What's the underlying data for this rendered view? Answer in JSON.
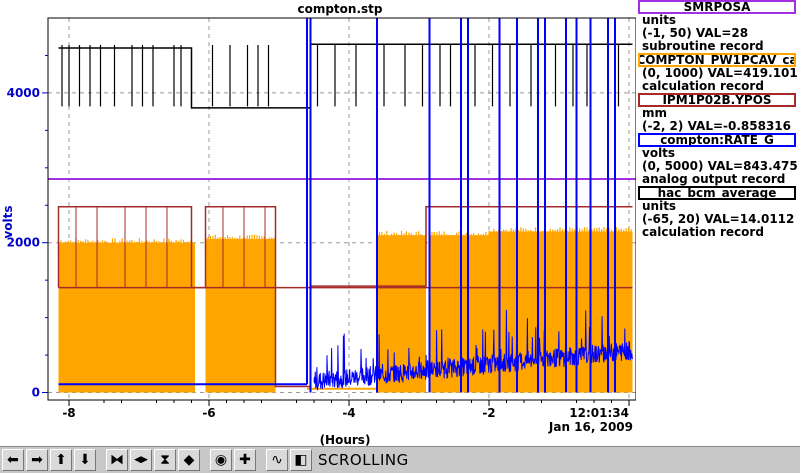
{
  "chart_data": {
    "type": "line",
    "title": "compton.stp",
    "ylabel": "volts",
    "xlabel": "(Hours)",
    "x_tick_labels": [
      "-8",
      "-6",
      "-4",
      "-2",
      "12:01:34"
    ],
    "x_ticks": [
      -8,
      -6,
      -4,
      -2,
      0
    ],
    "date_label": "Jan 16, 2009",
    "y_tick_labels": [
      "0",
      "2000",
      "4000"
    ],
    "y_ticks": [
      0,
      2000,
      4000
    ],
    "xlim": [
      -8.3,
      0.1
    ],
    "ylim": [
      -100,
      5000
    ],
    "grid": true,
    "series": [
      {
        "name": "SMRPOSA",
        "color": "#a030e0",
        "units": "units",
        "range": "(-1, 50)",
        "val": "VAL=28",
        "record": "subroutine record",
        "segments": [
          {
            "x": [
              -8.3,
              0.1
            ],
            "y": [
              2850,
              2850
            ]
          }
        ]
      },
      {
        "name": "COMPTON_PW1PCAV_ca",
        "color": "#ffa500",
        "units": "",
        "range": "(0, 1000)",
        "val": "VAL=419.101",
        "record": "calculation record",
        "bands": [
          [
            -8.15,
            -6.2,
            2000
          ],
          [
            -6.05,
            -5.05,
            2050
          ],
          [
            -3.6,
            -2.9,
            2100
          ],
          [
            -2.85,
            -2.0,
            2100
          ],
          [
            -2.0,
            0.05,
            2150
          ]
        ],
        "dips": [
          [
            -4.6,
            -3.6,
            50
          ]
        ]
      },
      {
        "name": "IPM1P02B.YPOS",
        "color": "#a52a2a",
        "units": "mm",
        "range": "(-2, 2)",
        "val": "VAL=-0.858316",
        "record": "",
        "segments": [
          {
            "x": [
              -8.15,
              -8.15,
              -6.25,
              -6.25,
              -6.05,
              -6.05,
              -5.05,
              -5.05,
              -4.55,
              -4.55,
              -2.9,
              -2.9,
              0.05
            ],
            "y": [
              1400,
              2480,
              2480,
              1400,
              1400,
              2480,
              2480,
              80,
              80,
              1420,
              1420,
              2480,
              2480
            ]
          },
          {
            "x": [
              -8.15,
              0.05
            ],
            "y": [
              1400,
              1400
            ]
          }
        ]
      },
      {
        "name": "compton:RATE_G",
        "color": "#0000ff",
        "units": "volts",
        "range": "(0, 5000)",
        "val": "VAL=843.475",
        "record": "analog output record",
        "baseline": [
          [
            -8.15,
            110
          ],
          [
            -4.6,
            110
          ]
        ],
        "noisy_from": -4.5,
        "spikes_x": [
          -4.55,
          -3.6,
          -2.85,
          -2.4,
          -2.3,
          -1.85,
          -1.6,
          -1.3,
          -1.2,
          -0.9,
          -0.75,
          -0.55,
          -0.3,
          -0.2
        ]
      },
      {
        "name": "hac_bcm_average",
        "color": "#000000",
        "units": "units",
        "range": "(-65, 20)",
        "val": "VAL=14.0112",
        "record": "calculation record",
        "segments": [
          {
            "x": [
              -8.15,
              -6.25,
              -6.25,
              -5.05,
              -5.05,
              -4.55,
              -4.55,
              0.05
            ],
            "y": [
              4600,
              4600,
              3800,
              3800,
              3800,
              3800,
              4650,
              4650
            ]
          }
        ]
      }
    ]
  },
  "toolbar": {
    "buttons": [
      {
        "name": "scroll-left-button",
        "icon": "arrow-left-icon",
        "glyph": "➡"
      },
      {
        "name": "scroll-right-button",
        "icon": "arrow-right-icon",
        "glyph": "➡"
      },
      {
        "name": "scroll-up-button",
        "icon": "arrow-up-icon",
        "glyph": "⬆"
      },
      {
        "name": "scroll-down-button",
        "icon": "arrow-down-icon",
        "glyph": "⬇"
      },
      {
        "name": "zoom-in-horizontal-button",
        "icon": "zoom-in-h-icon",
        "glyph": "⧓"
      },
      {
        "name": "zoom-out-horizontal-button",
        "icon": "zoom-out-h-icon",
        "glyph": "◀▶"
      },
      {
        "name": "zoom-in-vertical-button",
        "icon": "zoom-in-v-icon",
        "glyph": "⧗"
      },
      {
        "name": "zoom-out-vertical-button",
        "icon": "zoom-out-v-icon",
        "glyph": "◆"
      },
      {
        "name": "autoscale-button",
        "icon": "circle-icon",
        "glyph": "◉"
      },
      {
        "name": "add-trace-button",
        "icon": "plus-icon",
        "glyph": "✚"
      },
      {
        "name": "waveform-button",
        "icon": "waveform-icon",
        "glyph": "∿"
      },
      {
        "name": "print-button",
        "icon": "print-icon",
        "glyph": "◧"
      }
    ],
    "status": "SCROLLING"
  }
}
